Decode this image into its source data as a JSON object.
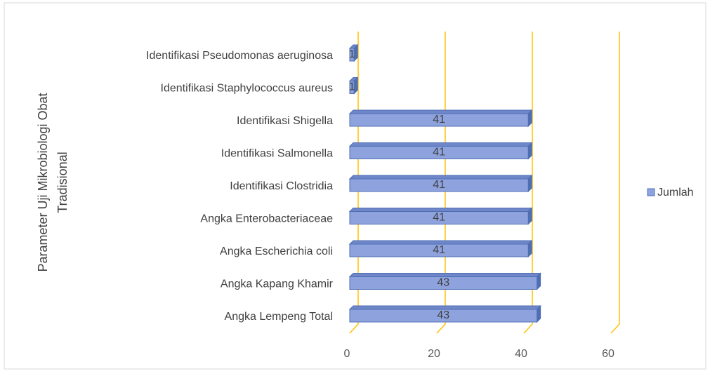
{
  "chart_data": {
    "type": "bar3d-horizontal",
    "y_label": "Parameter Uji Mikrobiologi Obat Tradisional",
    "categories": [
      "Angka Lempeng Total",
      "Angka Kapang Khamir",
      "Angka Escherichia coli",
      "Angka Enterobacteriaceae",
      "Identifikasi Clostridia",
      "Identifikasi Salmonella",
      "Identifikasi Shigella",
      "Identifikasi Staphylococcus aureus",
      "Identifikasi Pseudomonas aeruginosa"
    ],
    "series": [
      {
        "name": "Jumlah",
        "color": "#8ea3de",
        "values": [
          43,
          43,
          41,
          41,
          41,
          41,
          41,
          1,
          1
        ]
      }
    ],
    "xlim": [
      0,
      60
    ],
    "xticks": [
      0,
      20,
      40,
      60
    ],
    "grid": true,
    "grid_color": "#ffc000",
    "legend": "right"
  }
}
